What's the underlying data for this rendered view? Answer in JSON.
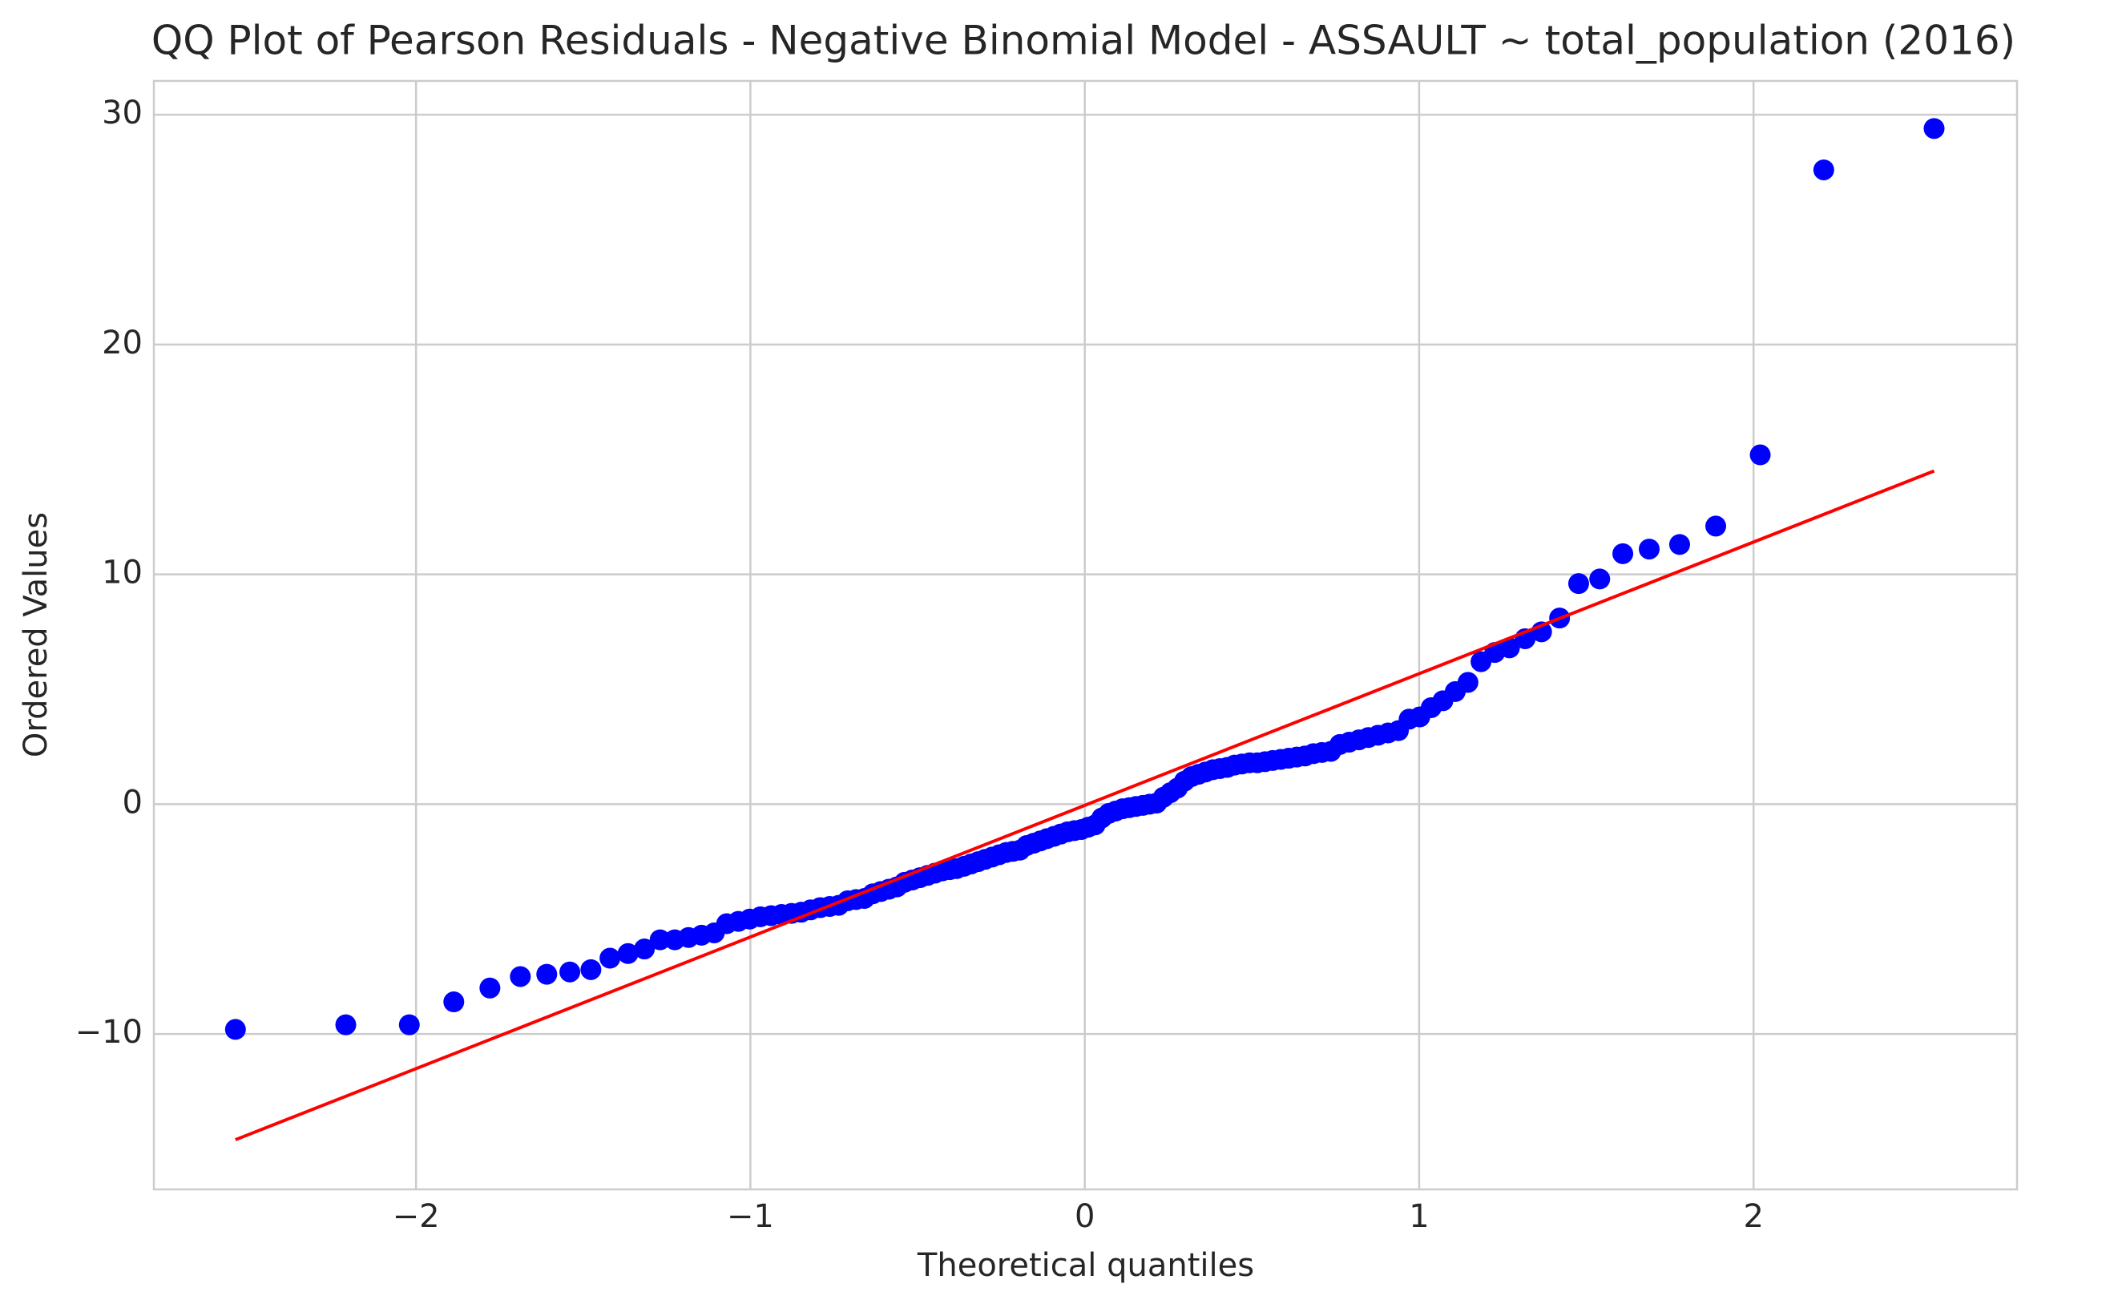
{
  "chart_data": {
    "type": "scatter",
    "title": "QQ Plot of Pearson Residuals - Negative Binomial Model - ASSAULT ~ total_population (2016)",
    "x_label": "Theoretical quantiles",
    "y_label": "Ordered Values",
    "xlim": [
      -2.784,
      2.788
    ],
    "ylim": [
      -16.76,
      31.47
    ],
    "xticks": [
      {
        "value": -2,
        "label": "−2"
      },
      {
        "value": -1,
        "label": "−1"
      },
      0,
      1,
      2
    ],
    "yticks": [
      {
        "value": -10,
        "label": "−10"
      },
      0,
      10,
      20,
      30
    ],
    "grid": true,
    "series": [
      {
        "type": "scatter",
        "color": "#0000ff",
        "x": [
          -2.54,
          -2.21,
          -2.02,
          -1.887,
          -1.779,
          -1.688,
          -1.609,
          -1.54,
          -1.477,
          -1.42,
          -1.366,
          -1.317,
          -1.27,
          -1.226,
          -1.185,
          -1.146,
          -1.108,
          -1.071,
          -1.036,
          -1.002,
          -0.97,
          -0.938,
          -0.907,
          -0.877,
          -0.848,
          -0.82,
          -0.791,
          -0.763,
          -0.736,
          -0.709,
          -0.684,
          -0.659,
          -0.634,
          -0.61,
          -0.586,
          -0.562,
          -0.539,
          -0.516,
          -0.493,
          -0.47,
          -0.448,
          -0.426,
          -0.404,
          -0.383,
          -0.361,
          -0.34,
          -0.319,
          -0.298,
          -0.277,
          -0.256,
          -0.235,
          -0.215,
          -0.194,
          -0.174,
          -0.153,
          -0.133,
          -0.113,
          -0.092,
          -0.072,
          -0.051,
          -0.031,
          -0.01,
          0.01,
          0.031,
          0.051,
          0.072,
          0.092,
          0.113,
          0.133,
          0.153,
          0.174,
          0.194,
          0.215,
          0.235,
          0.256,
          0.277,
          0.298,
          0.319,
          0.34,
          0.361,
          0.383,
          0.404,
          0.426,
          0.448,
          0.47,
          0.493,
          0.516,
          0.539,
          0.562,
          0.586,
          0.61,
          0.634,
          0.659,
          0.684,
          0.709,
          0.736,
          0.763,
          0.791,
          0.82,
          0.848,
          0.877,
          0.907,
          0.938,
          0.97,
          1.002,
          1.036,
          1.071,
          1.108,
          1.146,
          1.185,
          1.226,
          1.27,
          1.317,
          1.366,
          1.42,
          1.477,
          1.54,
          1.609,
          1.688,
          1.779,
          1.887,
          2.02,
          2.21,
          2.54
        ],
        "values": [
          -9.8,
          -9.6,
          -9.6,
          -8.6,
          -8.0,
          -7.5,
          -7.4,
          -7.3,
          -7.2,
          -6.7,
          -6.5,
          -6.3,
          -5.9,
          -5.9,
          -5.8,
          -5.7,
          -5.6,
          -5.2,
          -5.1,
          -5.0,
          -4.9,
          -4.85,
          -4.8,
          -4.75,
          -4.7,
          -4.6,
          -4.5,
          -4.45,
          -4.4,
          -4.2,
          -4.15,
          -4.1,
          -3.9,
          -3.8,
          -3.7,
          -3.6,
          -3.4,
          -3.3,
          -3.2,
          -3.1,
          -3.0,
          -2.9,
          -2.85,
          -2.8,
          -2.7,
          -2.6,
          -2.5,
          -2.4,
          -2.3,
          -2.2,
          -2.1,
          -2.05,
          -2.0,
          -1.8,
          -1.7,
          -1.6,
          -1.5,
          -1.4,
          -1.3,
          -1.2,
          -1.15,
          -1.1,
          -1.0,
          -0.9,
          -0.6,
          -0.4,
          -0.3,
          -0.2,
          -0.15,
          -0.1,
          -0.05,
          0.0,
          0.05,
          0.3,
          0.5,
          0.7,
          1.0,
          1.2,
          1.3,
          1.4,
          1.5,
          1.55,
          1.6,
          1.7,
          1.75,
          1.8,
          1.8,
          1.85,
          1.9,
          1.95,
          2.0,
          2.05,
          2.1,
          2.2,
          2.25,
          2.3,
          2.6,
          2.7,
          2.8,
          2.9,
          3.0,
          3.1,
          3.2,
          3.7,
          3.8,
          4.2,
          4.5,
          4.9,
          5.3,
          6.2,
          6.6,
          6.8,
          7.2,
          7.5,
          8.1,
          9.6,
          9.8,
          10.9,
          11.1,
          11.3,
          12.1,
          15.2,
          27.6,
          29.4
        ]
      },
      {
        "type": "line",
        "color": "#ff0000",
        "x": [
          -2.54,
          2.54
        ],
        "values": [
          -14.6,
          14.5
        ]
      }
    ]
  }
}
